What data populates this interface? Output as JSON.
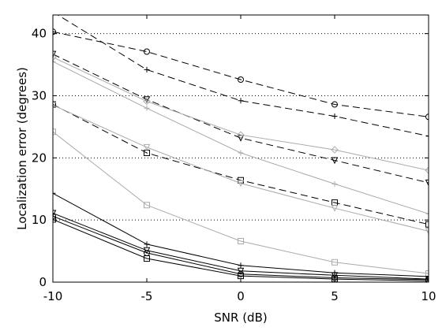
{
  "chart_data": {
    "type": "line",
    "title": "",
    "xlabel": "SNR (dB)",
    "ylabel": "Localization error (degrees)",
    "xlim": [
      -10,
      10
    ],
    "ylim": [
      0,
      43
    ],
    "x": [
      -10,
      -5,
      0,
      5,
      10
    ],
    "xticks": [
      -10,
      -5,
      0,
      5,
      10
    ],
    "yticks": [
      0,
      10,
      20,
      30,
      40
    ],
    "grid": "horizontal-dotted",
    "legend": "none",
    "series": [
      {
        "values": [
          40.3,
          37.1,
          32.6,
          28.6,
          26.6
        ],
        "color": "#000000",
        "dash": "dashed",
        "marker": "circle"
      },
      {
        "values": [
          43.5,
          34.2,
          29.2,
          26.7,
          23.5
        ],
        "color": "#000000",
        "dash": "dashed",
        "marker": "plus"
      },
      {
        "values": [
          36.7,
          29.4,
          23.2,
          19.6,
          16.0
        ],
        "color": "#000000",
        "dash": "dashed",
        "marker": "triangle-down"
      },
      {
        "values": [
          28.6,
          20.8,
          16.4,
          12.8,
          9.3
        ],
        "color": "#000000",
        "dash": "dashed",
        "marker": "square"
      },
      {
        "values": [
          36.2,
          29.1,
          23.7,
          21.3,
          18.0
        ],
        "color": "#aaaaaa",
        "dash": "solid",
        "marker": "diamond"
      },
      {
        "values": [
          35.5,
          28.0,
          20.8,
          15.8,
          11.0
        ],
        "color": "#aaaaaa",
        "dash": "solid",
        "marker": "plus"
      },
      {
        "values": [
          28.5,
          21.7,
          15.9,
          11.9,
          8.2
        ],
        "color": "#aaaaaa",
        "dash": "solid",
        "marker": "triangle-down"
      },
      {
        "values": [
          24.2,
          12.4,
          6.6,
          3.2,
          1.4
        ],
        "color": "#aaaaaa",
        "dash": "solid",
        "marker": "square"
      },
      {
        "values": [
          14.3,
          6.1,
          2.7,
          1.5,
          0.9
        ],
        "color": "#000000",
        "dash": "solid",
        "marker": "plus"
      },
      {
        "values": [
          11.1,
          5.1,
          1.8,
          1.1,
          0.5
        ],
        "color": "#000000",
        "dash": "solid",
        "marker": "triangle-down"
      },
      {
        "values": [
          10.6,
          4.7,
          1.3,
          0.7,
          0.4
        ],
        "color": "#000000",
        "dash": "solid",
        "marker": "circle"
      },
      {
        "values": [
          10.1,
          3.8,
          1.0,
          0.5,
          0.2
        ],
        "color": "#000000",
        "dash": "solid",
        "marker": "square"
      }
    ]
  }
}
